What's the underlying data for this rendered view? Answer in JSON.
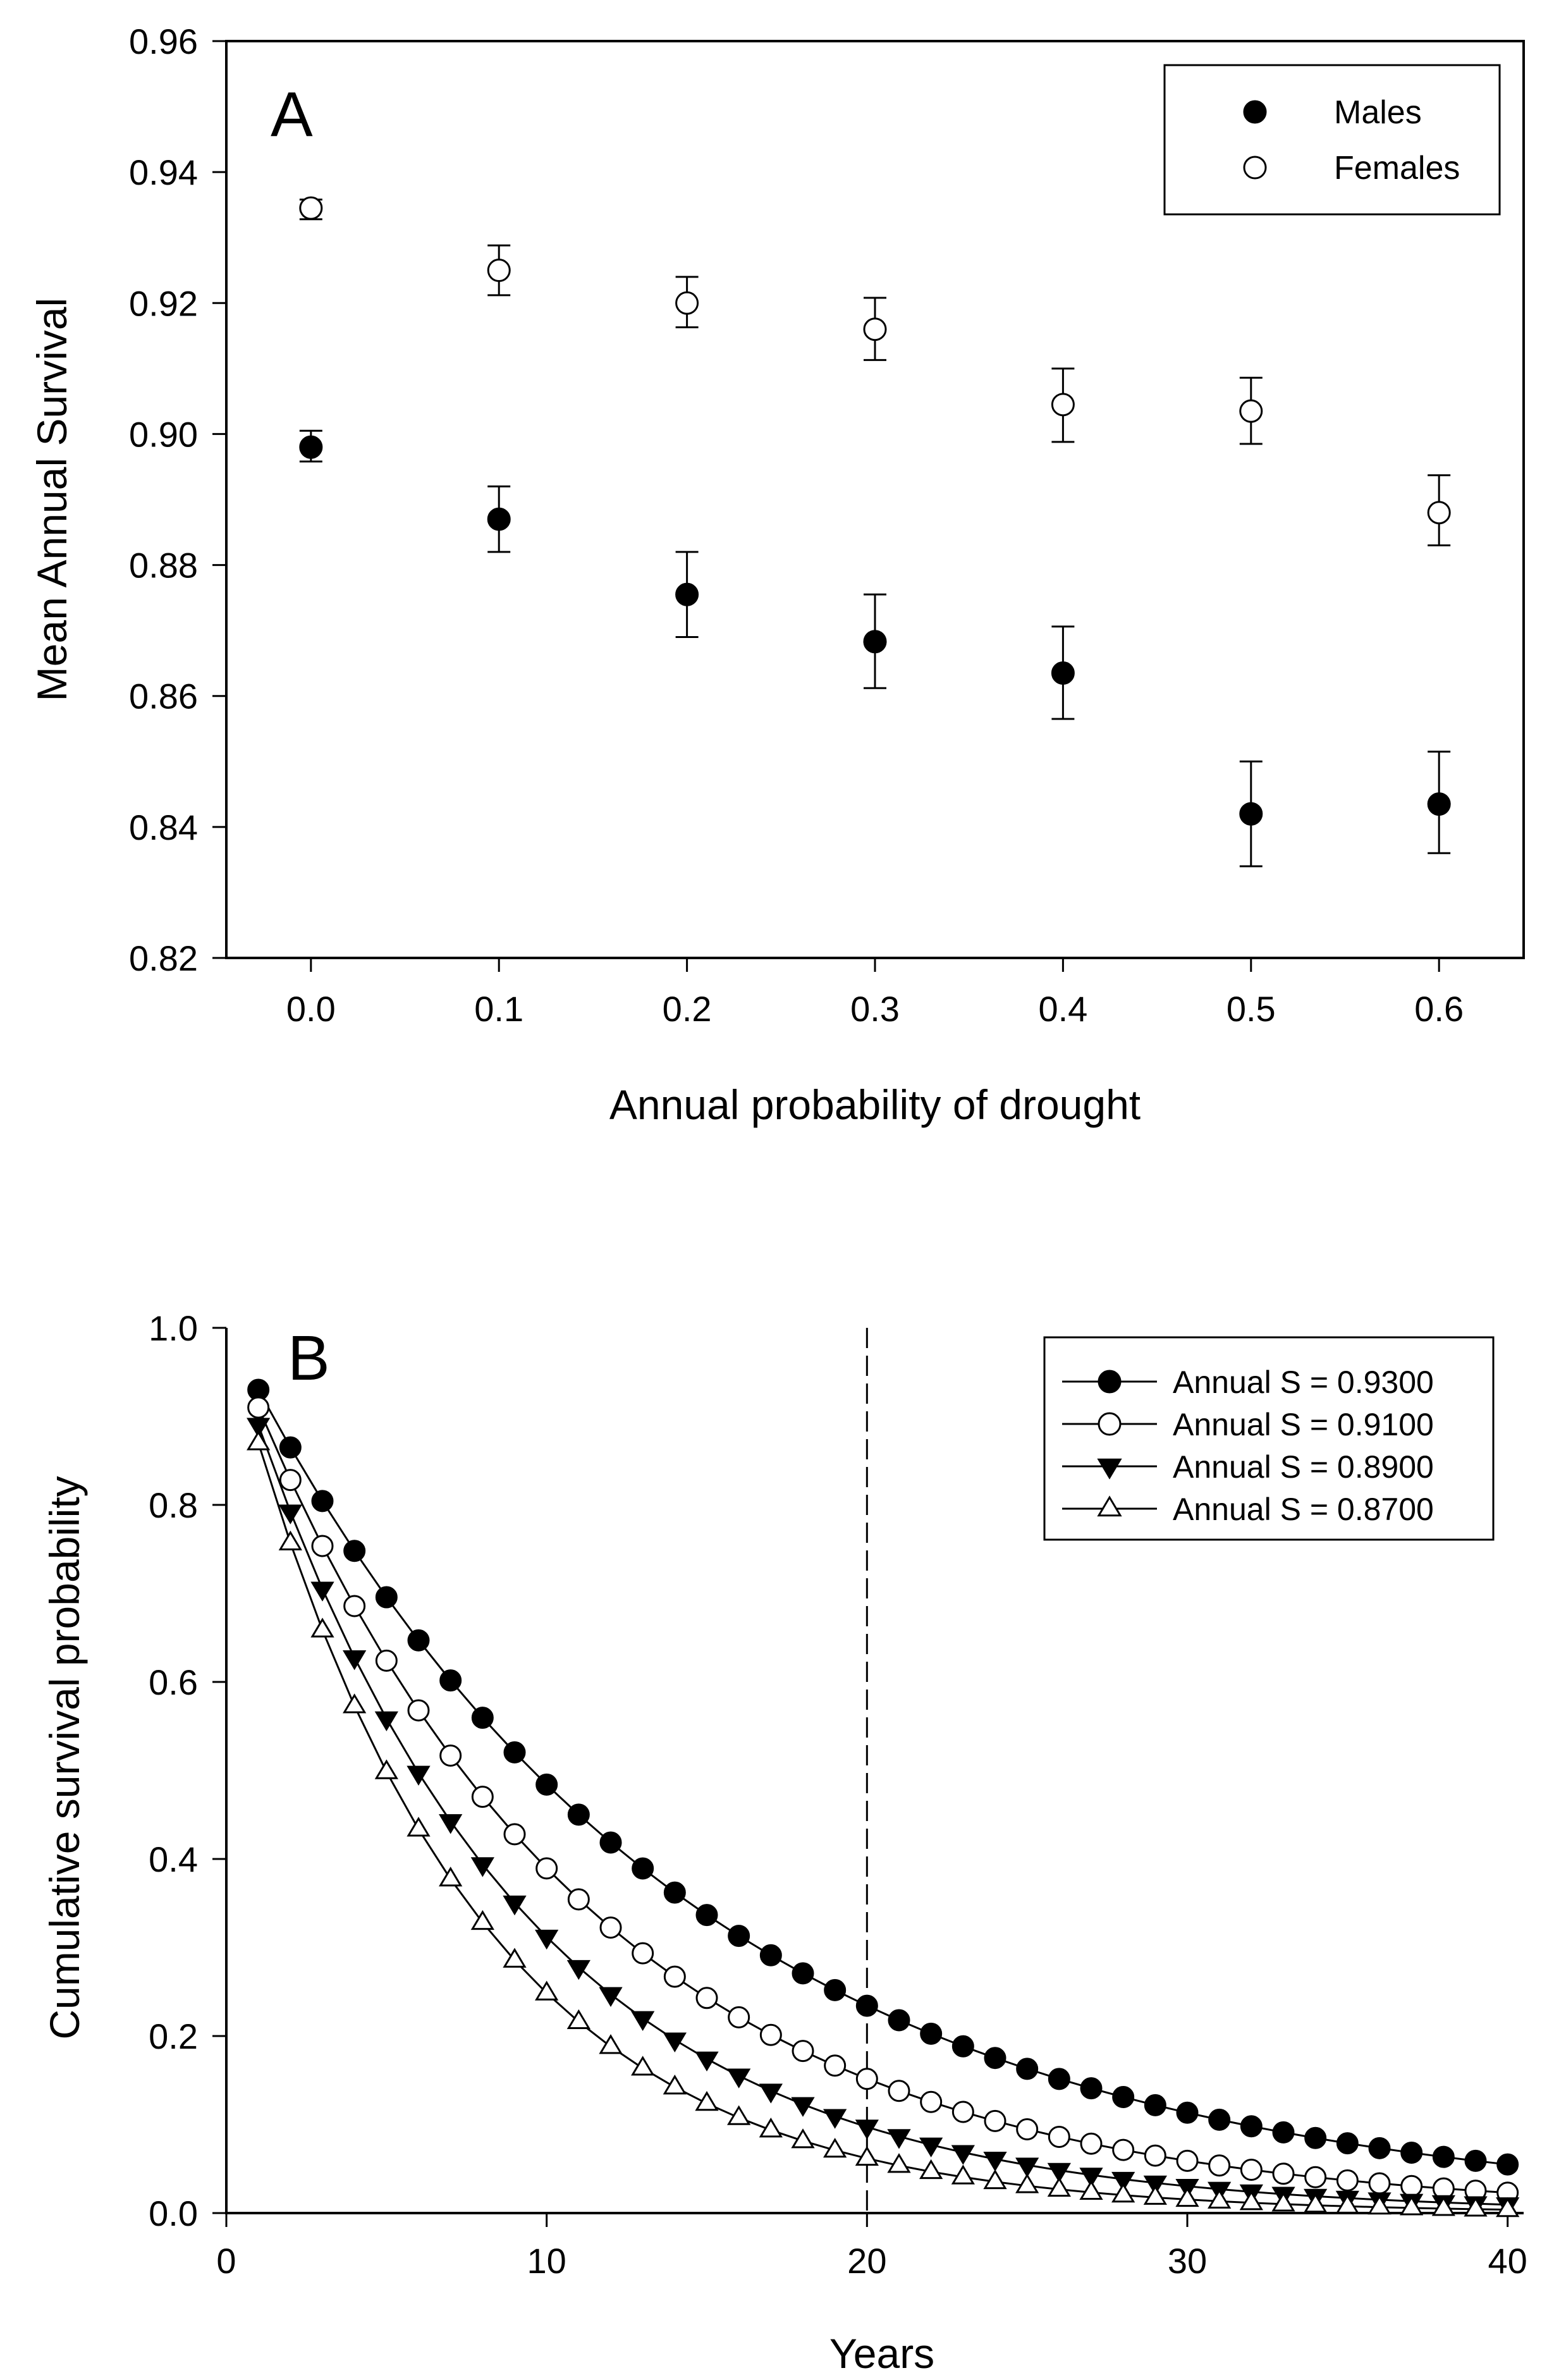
{
  "chart_data": [
    {
      "panel": "A",
      "type": "scatter",
      "xlabel": "Annual probability of drought",
      "ylabel": "Mean Annual Survival",
      "x_tick_labels": [
        "0.0",
        "0.1",
        "0.2",
        "0.3",
        "0.4",
        "0.5",
        "0.6"
      ],
      "y_tick_labels": [
        "0.82",
        "0.84",
        "0.86",
        "0.88",
        "0.90",
        "0.92",
        "0.94",
        "0.96"
      ],
      "xlim": [
        -0.045,
        0.645
      ],
      "ylim": [
        0.82,
        0.96
      ],
      "legend_position": "top-right",
      "series": [
        {
          "name": "Males",
          "marker": "filled-circle",
          "x": [
            0.0,
            0.1,
            0.2,
            0.3,
            0.4,
            0.5,
            0.6
          ],
          "y": [
            0.898,
            0.887,
            0.8755,
            0.8683,
            0.8635,
            0.842,
            0.8435
          ],
          "err_low": [
            0.8958,
            0.882,
            0.869,
            0.8612,
            0.8565,
            0.834,
            0.836
          ],
          "err_high": [
            0.9005,
            0.892,
            0.882,
            0.8755,
            0.8706,
            0.85,
            0.8515
          ]
        },
        {
          "name": "Females",
          "marker": "open-circle",
          "x": [
            0.0,
            0.1,
            0.2,
            0.3,
            0.4,
            0.5,
            0.6
          ],
          "y": [
            0.9345,
            0.925,
            0.92,
            0.916,
            0.9045,
            0.9035,
            0.888
          ],
          "err_low": [
            0.9328,
            0.9212,
            0.9163,
            0.9113,
            0.8988,
            0.8985,
            0.883
          ],
          "err_high": [
            0.9358,
            0.9288,
            0.924,
            0.9208,
            0.91,
            0.9086,
            0.8937
          ]
        }
      ]
    },
    {
      "panel": "B",
      "type": "line",
      "xlabel": "Years",
      "ylabel": "Cumulative survival probability",
      "x_tick_labels": [
        "0",
        "10",
        "20",
        "30",
        "40"
      ],
      "y_tick_labels": [
        "0.0",
        "0.2",
        "0.4",
        "0.6",
        "0.8",
        "1.0"
      ],
      "xlim": [
        0,
        40.5
      ],
      "ylim": [
        0,
        1.0
      ],
      "x": [
        1,
        2,
        3,
        4,
        5,
        6,
        7,
        8,
        9,
        10,
        11,
        12,
        13,
        14,
        15,
        16,
        17,
        18,
        19,
        20,
        21,
        22,
        23,
        24,
        25,
        26,
        27,
        28,
        29,
        30,
        31,
        32,
        33,
        34,
        35,
        36,
        37,
        38,
        39,
        40
      ],
      "reference_line_x": 20,
      "legend_position": "top-right",
      "series": [
        {
          "name": "Annual S = 0.9300",
          "marker": "filled-circle",
          "annual_s": 0.93
        },
        {
          "name": "Annual S = 0.9100",
          "marker": "open-circle",
          "annual_s": 0.91
        },
        {
          "name": "Annual S = 0.8900",
          "marker": "filled-triangle-down",
          "annual_s": 0.89
        },
        {
          "name": "Annual S = 0.8700",
          "marker": "open-triangle-up",
          "annual_s": 0.87
        }
      ]
    }
  ]
}
